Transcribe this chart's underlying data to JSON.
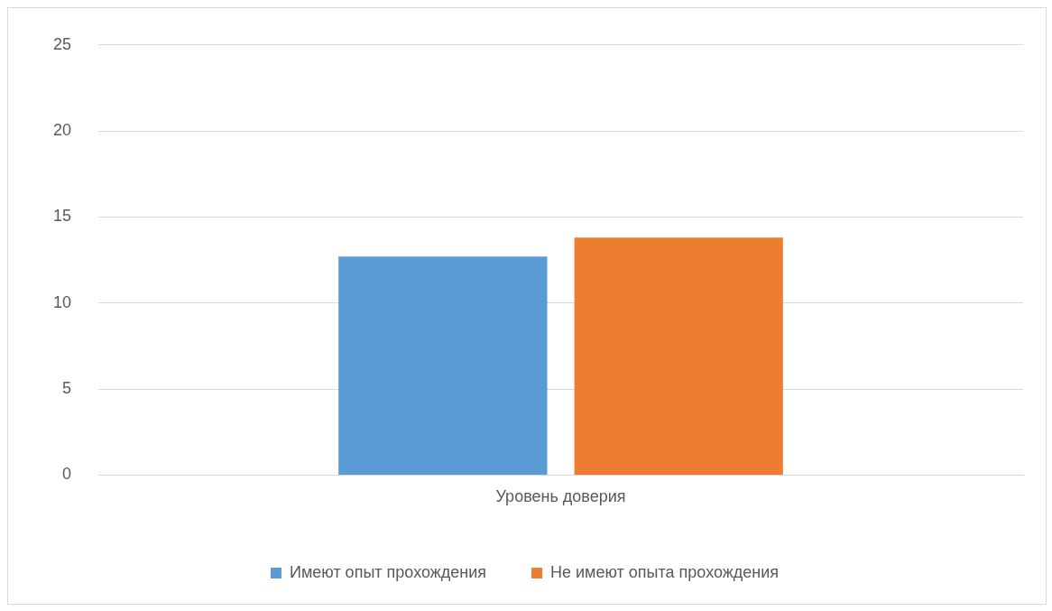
{
  "chart_data": {
    "type": "bar",
    "categories": [
      "Уровень доверия"
    ],
    "series": [
      {
        "name": "Имеют опыт прохождения",
        "color": "#5b9bd5",
        "values": [
          12.7
        ]
      },
      {
        "name": "Не имеют опыта прохождения",
        "color": "#ed7d31",
        "values": [
          13.8
        ]
      }
    ],
    "ylim": [
      0,
      25
    ],
    "yticks": [
      0,
      5,
      10,
      15,
      20,
      25
    ],
    "grid": "y",
    "legend": "bottom"
  }
}
